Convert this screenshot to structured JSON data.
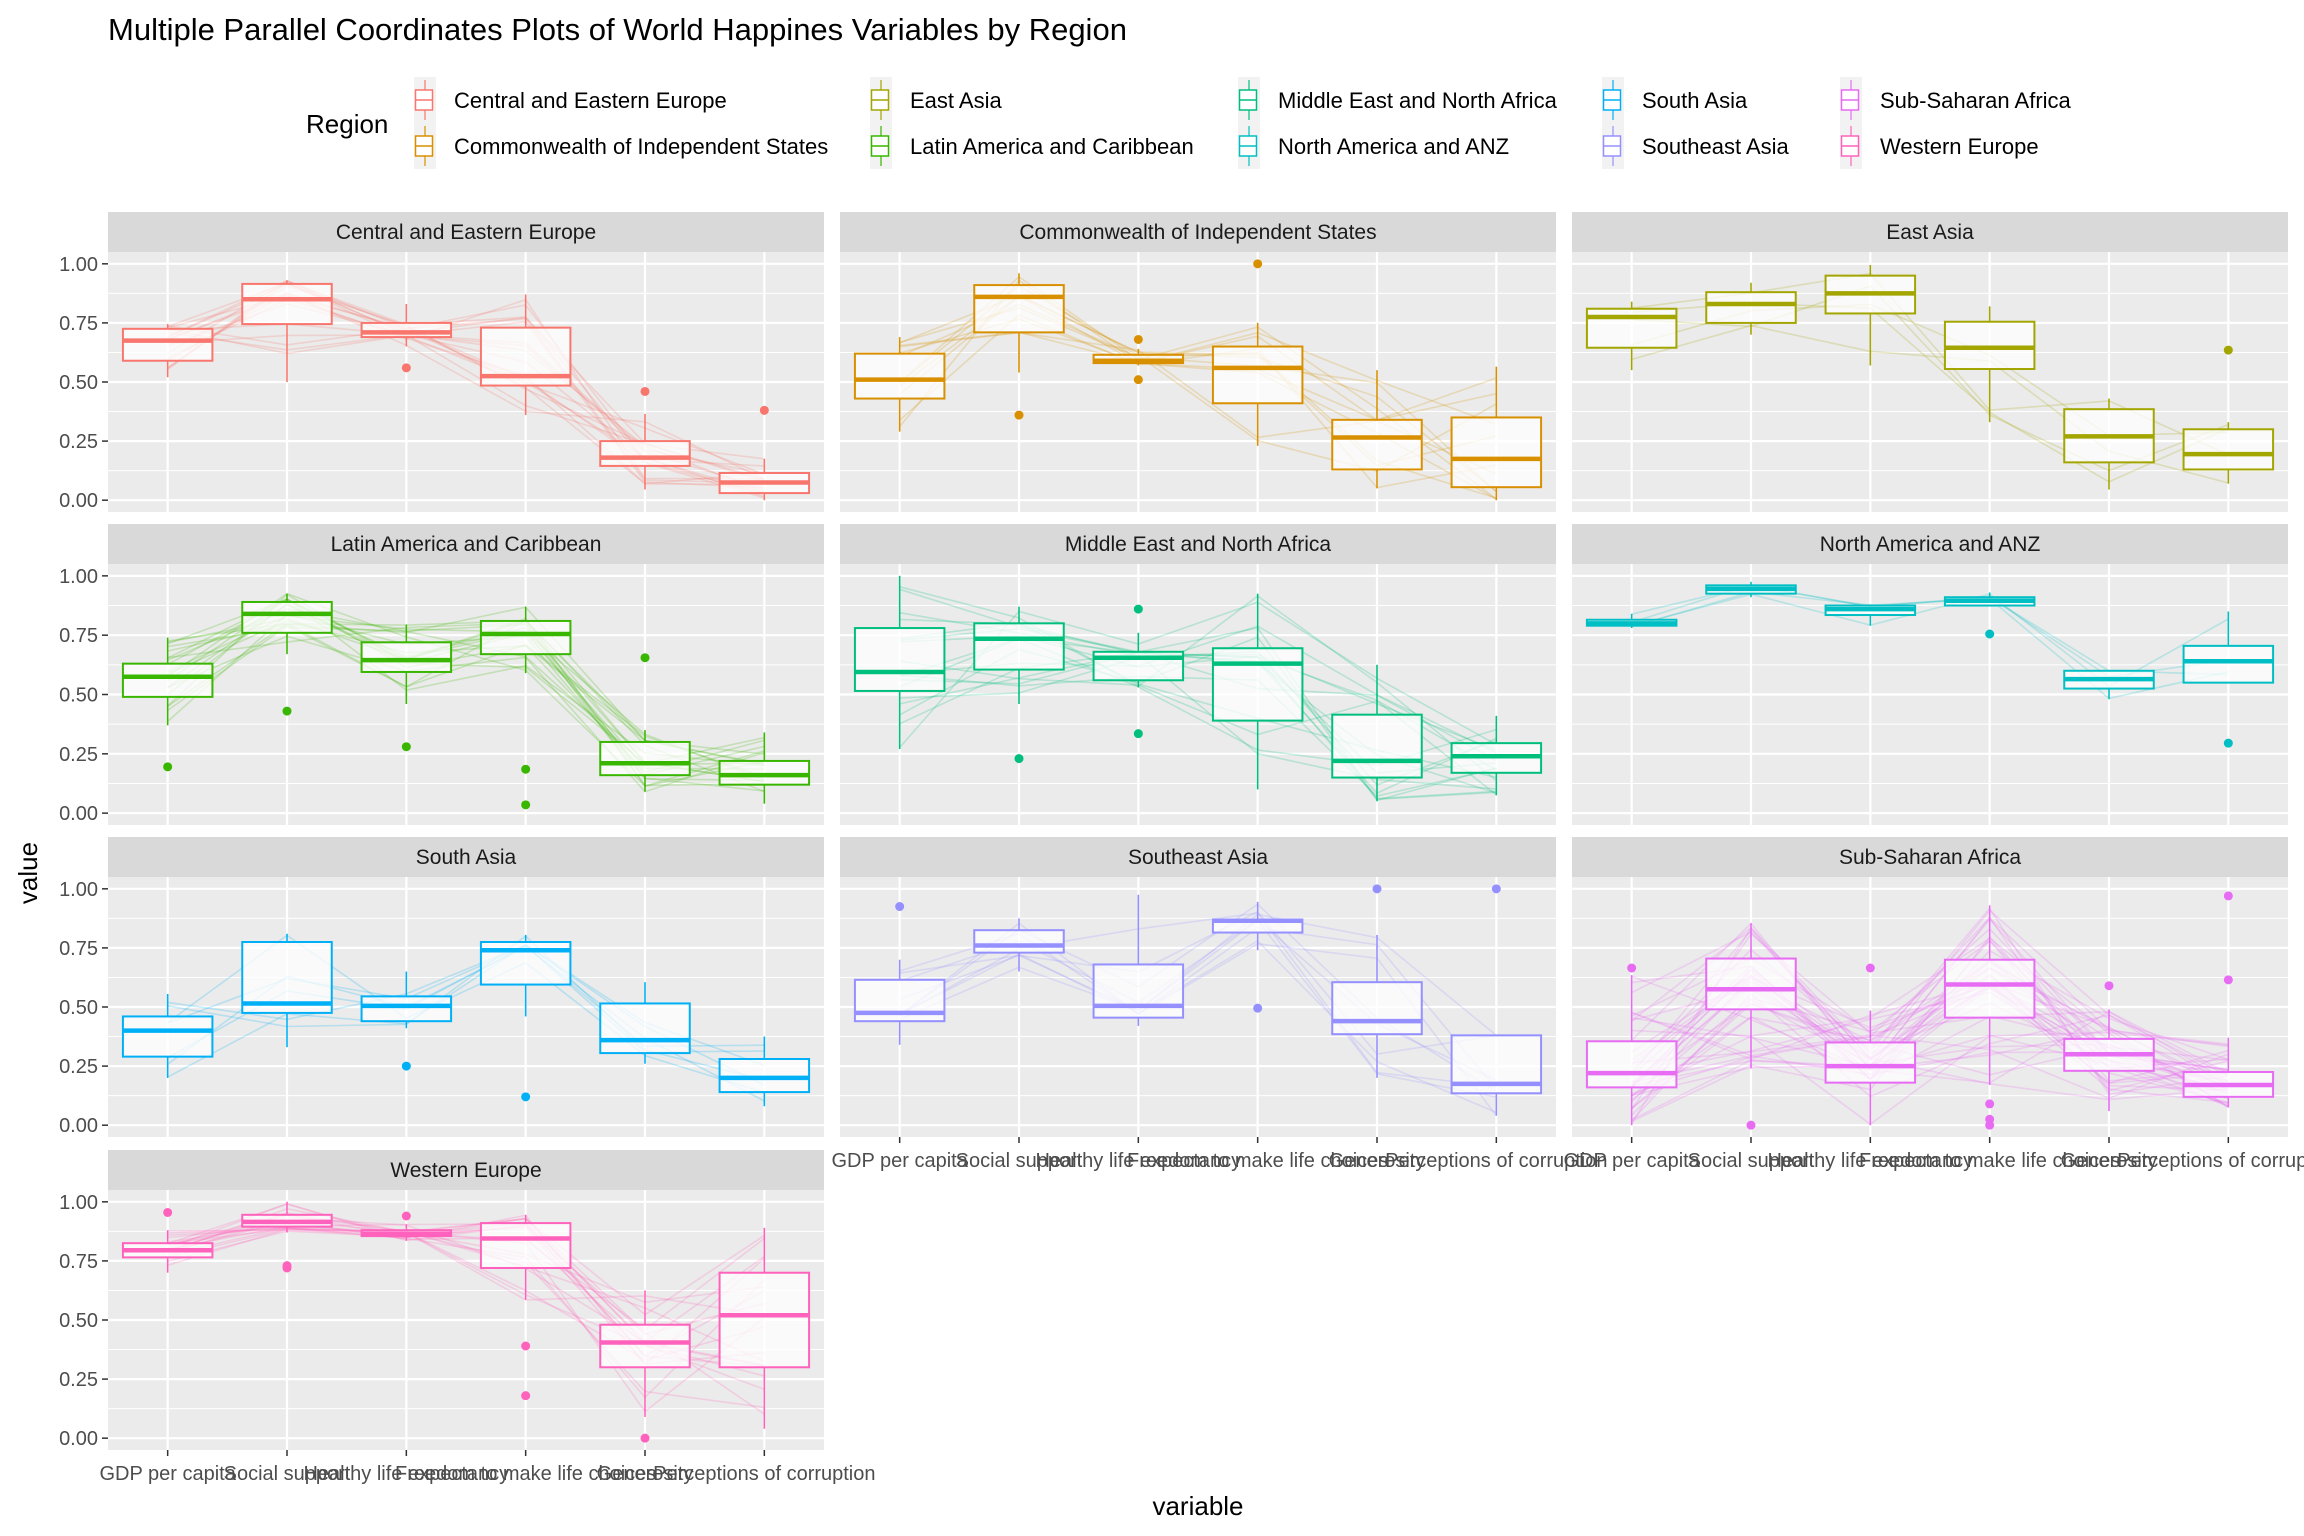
{
  "chart_data": {
    "type": "boxplot-parallel-coordinates",
    "title": "Multiple Parallel Coordinates Plots of World Happines Variables by Region",
    "xlabel": "variable",
    "ylabel": "value",
    "ylim": [
      0,
      1
    ],
    "yticks": [
      "0.00",
      "0.25",
      "0.50",
      "0.75",
      "1.00"
    ],
    "ytick_values": [
      0,
      0.25,
      0.5,
      0.75,
      1.0
    ],
    "grid": true,
    "legend": {
      "title": "Region",
      "placement": "top",
      "entries": [
        {
          "label": "Central and Eastern Europe",
          "color": "#F8766D"
        },
        {
          "label": "Commonwealth of Independent States",
          "color": "#D89000"
        },
        {
          "label": "East Asia",
          "color": "#A3A500"
        },
        {
          "label": "Latin America and Caribbean",
          "color": "#39B600"
        },
        {
          "label": "Middle East and North Africa",
          "color": "#00BF7D"
        },
        {
          "label": "North America and ANZ",
          "color": "#00BFC4"
        },
        {
          "label": "South Asia",
          "color": "#00B0F6"
        },
        {
          "label": "Southeast Asia",
          "color": "#9590FF"
        },
        {
          "label": "Sub-Saharan Africa",
          "color": "#E76BF3"
        },
        {
          "label": "Western Europe",
          "color": "#FF62BC"
        }
      ]
    },
    "categories": [
      "GDP per capita",
      "Social support",
      "Healthy life expectancy",
      "Freedom to make life choices",
      "Generosity",
      "Perceptions of corruption"
    ],
    "panels": [
      {
        "region": "Central and Eastern Europe",
        "color": "#F8766D",
        "boxes": [
          {
            "min": 0.52,
            "q1": 0.59,
            "median": 0.675,
            "q3": 0.725,
            "max": 0.745,
            "outliers": []
          },
          {
            "min": 0.5,
            "q1": 0.745,
            "median": 0.85,
            "q3": 0.915,
            "max": 0.93,
            "outliers": []
          },
          {
            "min": 0.65,
            "q1": 0.69,
            "median": 0.71,
            "q3": 0.75,
            "max": 0.83,
            "outliers": [
              0.56
            ]
          },
          {
            "min": 0.36,
            "q1": 0.485,
            "median": 0.525,
            "q3": 0.73,
            "max": 0.87,
            "outliers": []
          },
          {
            "min": 0.045,
            "q1": 0.145,
            "median": 0.18,
            "q3": 0.25,
            "max": 0.365,
            "outliers": [
              0.46
            ]
          },
          {
            "min": 0.0,
            "q1": 0.03,
            "median": 0.075,
            "q3": 0.115,
            "max": 0.175,
            "outliers": [
              0.38
            ]
          }
        ]
      },
      {
        "region": "Commonwealth of Independent States",
        "color": "#D89000",
        "boxes": [
          {
            "min": 0.29,
            "q1": 0.43,
            "median": 0.51,
            "q3": 0.62,
            "max": 0.69,
            "outliers": []
          },
          {
            "min": 0.54,
            "q1": 0.71,
            "median": 0.86,
            "q3": 0.91,
            "max": 0.96,
            "outliers": [
              0.36
            ]
          },
          {
            "min": 0.57,
            "q1": 0.58,
            "median": 0.59,
            "q3": 0.615,
            "max": 0.64,
            "outliers": [
              0.68,
              0.51
            ]
          },
          {
            "min": 0.23,
            "q1": 0.41,
            "median": 0.56,
            "q3": 0.65,
            "max": 0.75,
            "outliers": [
              1.0
            ]
          },
          {
            "min": 0.05,
            "q1": 0.13,
            "median": 0.265,
            "q3": 0.34,
            "max": 0.55,
            "outliers": []
          },
          {
            "min": 0.0,
            "q1": 0.055,
            "median": 0.175,
            "q3": 0.35,
            "max": 0.565,
            "outliers": []
          }
        ]
      },
      {
        "region": "East Asia",
        "color": "#A3A500",
        "boxes": [
          {
            "min": 0.55,
            "q1": 0.645,
            "median": 0.775,
            "q3": 0.81,
            "max": 0.84,
            "outliers": []
          },
          {
            "min": 0.7,
            "q1": 0.75,
            "median": 0.83,
            "q3": 0.88,
            "max": 0.92,
            "outliers": []
          },
          {
            "min": 0.57,
            "q1": 0.79,
            "median": 0.875,
            "q3": 0.95,
            "max": 0.995,
            "outliers": []
          },
          {
            "min": 0.33,
            "q1": 0.555,
            "median": 0.645,
            "q3": 0.755,
            "max": 0.82,
            "outliers": []
          },
          {
            "min": 0.045,
            "q1": 0.16,
            "median": 0.27,
            "q3": 0.385,
            "max": 0.43,
            "outliers": []
          },
          {
            "min": 0.07,
            "q1": 0.13,
            "median": 0.195,
            "q3": 0.3,
            "max": 0.33,
            "outliers": [
              0.635
            ]
          }
        ]
      },
      {
        "region": "Latin America and Caribbean",
        "color": "#39B600",
        "boxes": [
          {
            "min": 0.37,
            "q1": 0.49,
            "median": 0.575,
            "q3": 0.63,
            "max": 0.74,
            "outliers": [
              0.195
            ]
          },
          {
            "min": 0.67,
            "q1": 0.76,
            "median": 0.84,
            "q3": 0.89,
            "max": 0.925,
            "outliers": [
              0.43
            ]
          },
          {
            "min": 0.46,
            "q1": 0.595,
            "median": 0.645,
            "q3": 0.72,
            "max": 0.795,
            "outliers": [
              0.28
            ]
          },
          {
            "min": 0.59,
            "q1": 0.67,
            "median": 0.755,
            "q3": 0.81,
            "max": 0.87,
            "outliers": [
              0.185,
              0.035
            ]
          },
          {
            "min": 0.09,
            "q1": 0.16,
            "median": 0.21,
            "q3": 0.3,
            "max": 0.35,
            "outliers": [
              0.655
            ]
          },
          {
            "min": 0.04,
            "q1": 0.12,
            "median": 0.16,
            "q3": 0.22,
            "max": 0.34,
            "outliers": []
          }
        ]
      },
      {
        "region": "Middle East and North Africa",
        "color": "#00BF7D",
        "boxes": [
          {
            "min": 0.27,
            "q1": 0.515,
            "median": 0.595,
            "q3": 0.78,
            "max": 1.0,
            "outliers": []
          },
          {
            "min": 0.46,
            "q1": 0.605,
            "median": 0.735,
            "q3": 0.8,
            "max": 0.87,
            "outliers": [
              0.23
            ]
          },
          {
            "min": 0.53,
            "q1": 0.56,
            "median": 0.655,
            "q3": 0.68,
            "max": 0.76,
            "outliers": [
              0.86,
              0.335
            ]
          },
          {
            "min": 0.1,
            "q1": 0.39,
            "median": 0.63,
            "q3": 0.695,
            "max": 0.925,
            "outliers": []
          },
          {
            "min": 0.05,
            "q1": 0.15,
            "median": 0.22,
            "q3": 0.415,
            "max": 0.625,
            "outliers": []
          },
          {
            "min": 0.075,
            "q1": 0.17,
            "median": 0.24,
            "q3": 0.295,
            "max": 0.41,
            "outliers": []
          }
        ]
      },
      {
        "region": "North America and ANZ",
        "color": "#00BFC4",
        "boxes": [
          {
            "min": 0.78,
            "q1": 0.79,
            "median": 0.8,
            "q3": 0.815,
            "max": 0.84,
            "outliers": []
          },
          {
            "min": 0.91,
            "q1": 0.925,
            "median": 0.945,
            "q3": 0.96,
            "max": 0.975,
            "outliers": []
          },
          {
            "min": 0.79,
            "q1": 0.835,
            "median": 0.86,
            "q3": 0.875,
            "max": 0.88,
            "outliers": []
          },
          {
            "min": 0.875,
            "q1": 0.875,
            "median": 0.895,
            "q3": 0.91,
            "max": 0.93,
            "outliers": [
              0.755
            ]
          },
          {
            "min": 0.48,
            "q1": 0.525,
            "median": 0.565,
            "q3": 0.6,
            "max": 0.6,
            "outliers": []
          },
          {
            "min": 0.55,
            "q1": 0.55,
            "median": 0.64,
            "q3": 0.705,
            "max": 0.85,
            "outliers": [
              0.295
            ]
          }
        ]
      },
      {
        "region": "South Asia",
        "color": "#00B0F6",
        "boxes": [
          {
            "min": 0.2,
            "q1": 0.29,
            "median": 0.4,
            "q3": 0.46,
            "max": 0.555,
            "outliers": []
          },
          {
            "min": 0.33,
            "q1": 0.475,
            "median": 0.515,
            "q3": 0.775,
            "max": 0.81,
            "outliers": []
          },
          {
            "min": 0.41,
            "q1": 0.44,
            "median": 0.505,
            "q3": 0.545,
            "max": 0.65,
            "outliers": [
              0.25
            ]
          },
          {
            "min": 0.46,
            "q1": 0.595,
            "median": 0.74,
            "q3": 0.775,
            "max": 0.805,
            "outliers": [
              0.12
            ]
          },
          {
            "min": 0.26,
            "q1": 0.305,
            "median": 0.36,
            "q3": 0.515,
            "max": 0.605,
            "outliers": []
          },
          {
            "min": 0.08,
            "q1": 0.14,
            "median": 0.2,
            "q3": 0.28,
            "max": 0.375,
            "outliers": []
          }
        ]
      },
      {
        "region": "Southeast Asia",
        "color": "#9590FF",
        "boxes": [
          {
            "min": 0.34,
            "q1": 0.44,
            "median": 0.475,
            "q3": 0.615,
            "max": 0.7,
            "outliers": [
              0.925
            ]
          },
          {
            "min": 0.65,
            "q1": 0.73,
            "median": 0.76,
            "q3": 0.825,
            "max": 0.875,
            "outliers": []
          },
          {
            "min": 0.42,
            "q1": 0.455,
            "median": 0.505,
            "q3": 0.68,
            "max": 0.975,
            "outliers": []
          },
          {
            "min": 0.74,
            "q1": 0.815,
            "median": 0.865,
            "q3": 0.87,
            "max": 0.945,
            "outliers": [
              0.495
            ]
          },
          {
            "min": 0.2,
            "q1": 0.385,
            "median": 0.44,
            "q3": 0.605,
            "max": 0.805,
            "outliers": [
              1.0
            ]
          },
          {
            "min": 0.04,
            "q1": 0.135,
            "median": 0.175,
            "q3": 0.38,
            "max": 0.38,
            "outliers": [
              1.0
            ]
          }
        ]
      },
      {
        "region": "Sub-Saharan Africa",
        "color": "#E76BF3",
        "boxes": [
          {
            "min": 0.0,
            "q1": 0.16,
            "median": 0.22,
            "q3": 0.355,
            "max": 0.635,
            "outliers": [
              0.665
            ]
          },
          {
            "min": 0.24,
            "q1": 0.49,
            "median": 0.575,
            "q3": 0.705,
            "max": 0.855,
            "outliers": [
              0.0
            ]
          },
          {
            "min": 0.0,
            "q1": 0.18,
            "median": 0.25,
            "q3": 0.35,
            "max": 0.485,
            "outliers": [
              0.665
            ]
          },
          {
            "min": 0.17,
            "q1": 0.455,
            "median": 0.595,
            "q3": 0.7,
            "max": 0.93,
            "outliers": [
              0.09,
              0.025,
              0.0
            ]
          },
          {
            "min": 0.06,
            "q1": 0.23,
            "median": 0.3,
            "q3": 0.365,
            "max": 0.49,
            "outliers": [
              0.59
            ]
          },
          {
            "min": 0.075,
            "q1": 0.12,
            "median": 0.17,
            "q3": 0.225,
            "max": 0.37,
            "outliers": [
              0.97,
              0.615
            ]
          }
        ]
      },
      {
        "region": "Western Europe",
        "color": "#FF62BC",
        "boxes": [
          {
            "min": 0.7,
            "q1": 0.765,
            "median": 0.795,
            "q3": 0.825,
            "max": 0.88,
            "outliers": [
              0.955
            ]
          },
          {
            "min": 0.87,
            "q1": 0.895,
            "median": 0.915,
            "q3": 0.945,
            "max": 1.0,
            "outliers": [
              0.73,
              0.72
            ]
          },
          {
            "min": 0.835,
            "q1": 0.855,
            "median": 0.865,
            "q3": 0.88,
            "max": 0.905,
            "outliers": [
              0.94
            ]
          },
          {
            "min": 0.585,
            "q1": 0.72,
            "median": 0.845,
            "q3": 0.91,
            "max": 0.945,
            "outliers": [
              0.39,
              0.18
            ]
          },
          {
            "min": 0.09,
            "q1": 0.3,
            "median": 0.405,
            "q3": 0.48,
            "max": 0.625,
            "outliers": [
              0.0
            ]
          },
          {
            "min": 0.04,
            "q1": 0.3,
            "median": 0.52,
            "q3": 0.7,
            "max": 0.89,
            "outliers": []
          }
        ]
      }
    ]
  }
}
